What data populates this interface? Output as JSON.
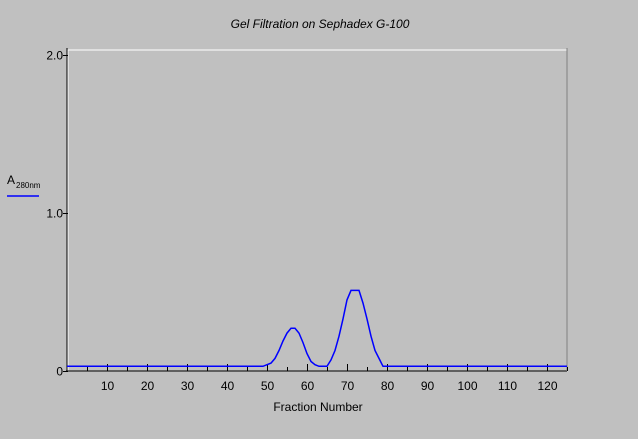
{
  "chart_data": {
    "type": "line",
    "title": "Gel Filtration on Sephadex G-100",
    "xlabel": "Fraction Number",
    "ylabel_main": "A",
    "ylabel_sub": "280nm",
    "xlim": [
      0,
      125
    ],
    "ylim": [
      0,
      2.0
    ],
    "x_ticks": [
      10,
      20,
      30,
      40,
      50,
      60,
      70,
      80,
      90,
      100,
      110,
      120
    ],
    "x_minor_ticks": [
      5,
      15,
      25,
      35,
      45,
      55,
      65,
      75,
      85,
      95,
      105,
      115,
      125
    ],
    "y_ticks": [
      {
        "value": 0,
        "label": "0"
      },
      {
        "value": 1.0,
        "label": "1.0"
      },
      {
        "value": 2.0,
        "label": "2.0"
      }
    ],
    "grid": false,
    "legend_placement": "left",
    "line_color": "#0000ff",
    "axis_background": "#c0c0c0",
    "series": [
      {
        "name": "",
        "x": [
          0,
          49,
          50,
          51,
          52,
          53,
          54,
          55,
          56,
          57,
          58,
          59,
          60,
          61,
          62,
          63,
          64,
          65,
          66,
          67,
          68,
          69,
          70,
          71,
          72,
          73,
          74,
          75,
          76,
          77,
          78,
          79,
          125
        ],
        "y": [
          0.03,
          0.03,
          0.04,
          0.05,
          0.08,
          0.13,
          0.19,
          0.24,
          0.27,
          0.27,
          0.24,
          0.18,
          0.11,
          0.06,
          0.04,
          0.03,
          0.03,
          0.03,
          0.07,
          0.13,
          0.22,
          0.33,
          0.45,
          0.51,
          0.51,
          0.51,
          0.43,
          0.33,
          0.22,
          0.13,
          0.08,
          0.03,
          0.03
        ]
      }
    ]
  }
}
